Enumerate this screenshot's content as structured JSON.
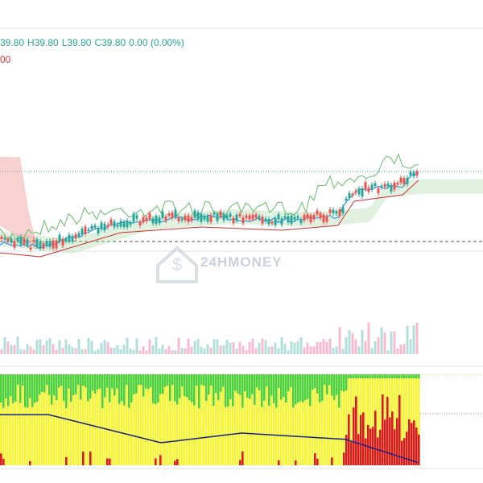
{
  "header": {
    "open": "39.80",
    "high": "H39.80",
    "low": "L39.80",
    "close": "C39.80",
    "change": "0.00 (0.00%)",
    "second_line": "00"
  },
  "watermark": "24HMONEY"
}
